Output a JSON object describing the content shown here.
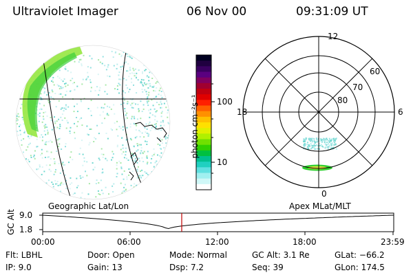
{
  "header": {
    "instrument": "Ultraviolet Imager",
    "date": "06 Nov 00",
    "time": "09:31:09 UT"
  },
  "colorbar": {
    "unit_label": "photon cm⁻²s⁻¹",
    "ticks": [
      "100",
      "10"
    ],
    "colors": [
      "#000020",
      "#200040",
      "#3a0060",
      "#5a0080",
      "#800060",
      "#a00030",
      "#c00010",
      "#e00000",
      "#ff2000",
      "#ff6000",
      "#ff9000",
      "#ffc000",
      "#ffe000",
      "#e0f000",
      "#b0f000",
      "#70e000",
      "#30d000",
      "#00c040",
      "#00c090",
      "#20d0c0",
      "#60e0e0",
      "#a0f0f0",
      "#d0f8f8",
      "#ffffff"
    ]
  },
  "polar_plot": {
    "mlt_labels": [
      "12",
      "18",
      "6",
      "0"
    ],
    "mlat_labels": [
      "60",
      "70",
      "80"
    ],
    "coordinate_label": "Apex MLat/MLT"
  },
  "globe": {
    "coordinate_label": "Geographic Lat/Lon"
  },
  "altitude_plot": {
    "ylabel": "GC Alt",
    "ytick_top": "9.0",
    "ytick_bottom": "1.8",
    "time_ticks": [
      "00:00",
      "06:00",
      "12:00",
      "18:00",
      "23:59"
    ],
    "current_time_fraction": 0.396
  },
  "info": {
    "flt": "Flt: LBHL",
    "ip": "IP:  9.0",
    "door": "Door: Open",
    "gain": "Gain: 13",
    "mode": "Mode: Normal",
    "dsp": "Dsp:     7.2",
    "gc_alt": "GC Alt: 3.1 Re",
    "seq": "Seq: 39",
    "glat": "GLat: −66.2",
    "glon": "GLon: 174.5"
  }
}
